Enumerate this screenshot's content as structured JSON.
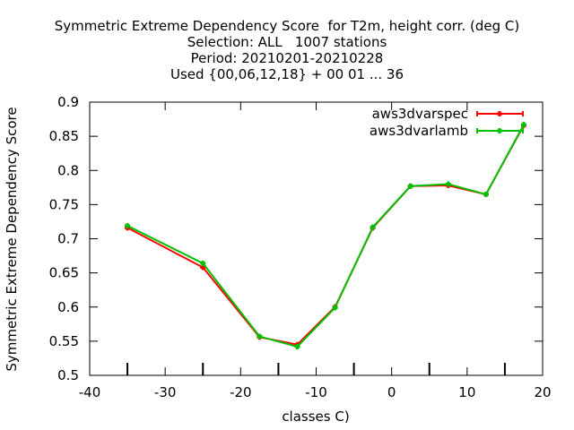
{
  "chart_data": {
    "type": "line",
    "title_lines": [
      "Symmetric Extreme Dependency Score  for T2m, height corr. (deg C)",
      "Selection: ALL   1007 stations",
      "Period: 20210201-20210228",
      "Used {00,06,12,18} + 00 01 ... 36"
    ],
    "xlabel": "classes C)",
    "ylabel": "Symmetric Extreme Dependency Score",
    "xlim": [
      -40,
      20
    ],
    "ylim": [
      0.5,
      0.9
    ],
    "xticks": [
      -40,
      -30,
      -20,
      -10,
      0,
      10,
      20
    ],
    "yticks": [
      0.5,
      0.55,
      0.6,
      0.65,
      0.7,
      0.75,
      0.8,
      0.85,
      0.9
    ],
    "legend_position": "top-right",
    "series": [
      {
        "name": "aws3dvarspec",
        "color": "#ff0000",
        "x": [
          -35,
          -25,
          -17.5,
          -12.5,
          -7.5,
          -2.5,
          2.5,
          7.5,
          12.5,
          17.5
        ],
        "y": [
          0.716,
          0.658,
          0.556,
          0.545,
          0.6,
          0.716,
          0.777,
          0.778,
          0.765,
          0.866
        ]
      },
      {
        "name": "aws3dvarlamb",
        "color": "#00c000",
        "x": [
          -35,
          -25,
          -17.5,
          -12.5,
          -7.5,
          -2.5,
          2.5,
          7.5,
          12.5,
          17.5
        ],
        "y": [
          0.719,
          0.664,
          0.557,
          0.542,
          0.599,
          0.717,
          0.777,
          0.78,
          0.765,
          0.867
        ]
      }
    ]
  }
}
